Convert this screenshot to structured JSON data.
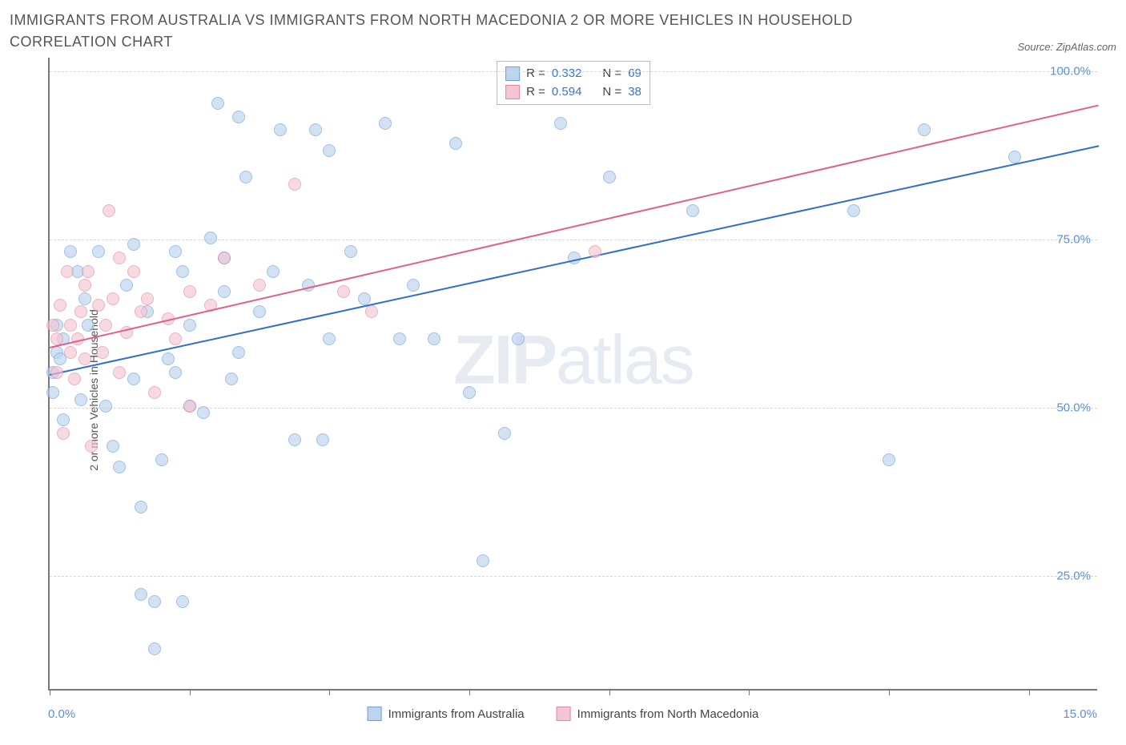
{
  "title": "IMMIGRANTS FROM AUSTRALIA VS IMMIGRANTS FROM NORTH MACEDONIA 2 OR MORE VEHICLES IN HOUSEHOLD CORRELATION CHART",
  "source": "Source: ZipAtlas.com",
  "ylabel": "2 or more Vehicles in Household",
  "watermark_bold": "ZIP",
  "watermark_light": "atlas",
  "chart": {
    "type": "scatter",
    "background_color": "#ffffff",
    "grid_color": "#d8d8d8",
    "axis_color": "#777777",
    "xlim": [
      0,
      15
    ],
    "ylim": [
      8,
      102
    ],
    "xtick_positions": [
      0,
      2,
      4,
      6,
      8,
      10,
      12,
      14
    ],
    "xtick_labels": {
      "min": "0.0%",
      "max": "15.0%"
    },
    "ytick_positions": [
      25,
      50,
      75,
      100
    ],
    "ytick_labels": [
      "25.0%",
      "50.0%",
      "75.0%",
      "100.0%"
    ],
    "label_color": "#5b8fd6",
    "label_fontsize": 15,
    "marker_radius": 8,
    "marker_border_width": 1
  },
  "series": [
    {
      "name": "Immigrants from Australia",
      "fill": "#bcd4ee",
      "stroke": "#6f9fd8",
      "fill_opacity": 0.65,
      "R": "0.332",
      "N": "69",
      "trend": {
        "x1": 0,
        "y1": 55,
        "x2": 15,
        "y2": 89,
        "color": "#2f6fc9",
        "width": 2
      },
      "points": [
        [
          0.05,
          55
        ],
        [
          0.05,
          52
        ],
        [
          0.1,
          62
        ],
        [
          0.1,
          58
        ],
        [
          0.15,
          57
        ],
        [
          0.2,
          60
        ],
        [
          0.2,
          48
        ],
        [
          0.3,
          73
        ],
        [
          0.4,
          70
        ],
        [
          0.45,
          51
        ],
        [
          0.5,
          66
        ],
        [
          0.55,
          62
        ],
        [
          0.7,
          73
        ],
        [
          0.8,
          50
        ],
        [
          0.9,
          44
        ],
        [
          1.0,
          41
        ],
        [
          1.1,
          68
        ],
        [
          1.2,
          74
        ],
        [
          1.2,
          54
        ],
        [
          1.3,
          22
        ],
        [
          1.3,
          35
        ],
        [
          1.4,
          64
        ],
        [
          1.5,
          14
        ],
        [
          1.5,
          21
        ],
        [
          1.6,
          42
        ],
        [
          1.7,
          57
        ],
        [
          1.8,
          73
        ],
        [
          1.8,
          55
        ],
        [
          1.9,
          70
        ],
        [
          1.9,
          21
        ],
        [
          2.0,
          62
        ],
        [
          2.0,
          50
        ],
        [
          2.2,
          49
        ],
        [
          2.3,
          75
        ],
        [
          2.4,
          95
        ],
        [
          2.5,
          72
        ],
        [
          2.5,
          67
        ],
        [
          2.6,
          54
        ],
        [
          2.7,
          93
        ],
        [
          2.7,
          58
        ],
        [
          2.8,
          84
        ],
        [
          3.0,
          64
        ],
        [
          3.2,
          70
        ],
        [
          3.3,
          91
        ],
        [
          3.5,
          45
        ],
        [
          3.7,
          68
        ],
        [
          3.8,
          91
        ],
        [
          3.9,
          45
        ],
        [
          4.0,
          60
        ],
        [
          4.0,
          88
        ],
        [
          4.3,
          73
        ],
        [
          4.5,
          66
        ],
        [
          4.8,
          92
        ],
        [
          5.0,
          60
        ],
        [
          5.2,
          68
        ],
        [
          5.5,
          60
        ],
        [
          5.8,
          89
        ],
        [
          6.0,
          52
        ],
        [
          6.2,
          27
        ],
        [
          6.5,
          46
        ],
        [
          6.7,
          60
        ],
        [
          7.3,
          92
        ],
        [
          7.5,
          72
        ],
        [
          8.0,
          84
        ],
        [
          9.2,
          79
        ],
        [
          11.5,
          79
        ],
        [
          12.0,
          42
        ],
        [
          12.5,
          91
        ],
        [
          13.8,
          87
        ]
      ]
    },
    {
      "name": "Immigrants from North Macedonia",
      "fill": "#f4c6d2",
      "stroke": "#e08aa3",
      "fill_opacity": 0.65,
      "R": "0.594",
      "N": "38",
      "trend": {
        "x1": 0,
        "y1": 59,
        "x2": 15,
        "y2": 95,
        "color": "#e26088",
        "width": 2
      },
      "points": [
        [
          0.05,
          62
        ],
        [
          0.1,
          60
        ],
        [
          0.1,
          55
        ],
        [
          0.15,
          65
        ],
        [
          0.2,
          46
        ],
        [
          0.25,
          70
        ],
        [
          0.3,
          62
        ],
        [
          0.3,
          58
        ],
        [
          0.35,
          54
        ],
        [
          0.4,
          60
        ],
        [
          0.45,
          64
        ],
        [
          0.5,
          68
        ],
        [
          0.5,
          57
        ],
        [
          0.55,
          70
        ],
        [
          0.6,
          44
        ],
        [
          0.7,
          65
        ],
        [
          0.75,
          58
        ],
        [
          0.8,
          62
        ],
        [
          0.85,
          79
        ],
        [
          0.9,
          66
        ],
        [
          1.0,
          72
        ],
        [
          1.0,
          55
        ],
        [
          1.1,
          61
        ],
        [
          1.2,
          70
        ],
        [
          1.3,
          64
        ],
        [
          1.4,
          66
        ],
        [
          1.5,
          52
        ],
        [
          1.7,
          63
        ],
        [
          1.8,
          60
        ],
        [
          2.0,
          67
        ],
        [
          2.0,
          50
        ],
        [
          2.3,
          65
        ],
        [
          2.5,
          72
        ],
        [
          3.0,
          68
        ],
        [
          3.5,
          83
        ],
        [
          4.2,
          67
        ],
        [
          4.6,
          64
        ],
        [
          7.8,
          73
        ]
      ]
    }
  ],
  "stats_box": {
    "labels": {
      "R": "R =",
      "N": "N ="
    }
  },
  "legend": {
    "series1": "Immigrants from Australia",
    "series2": "Immigrants from North Macedonia"
  }
}
